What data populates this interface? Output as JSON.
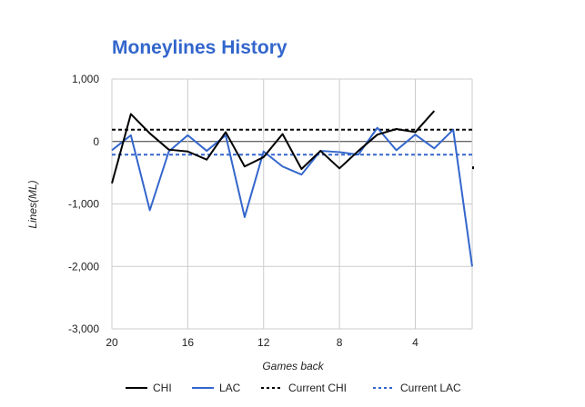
{
  "chart_data": {
    "type": "line",
    "title": "Moneylines History",
    "xlabel": "Games back",
    "ylabel": "Lines(ML)",
    "xlim": [
      20,
      1
    ],
    "ylim": [
      -3000,
      1000
    ],
    "x_ticks": [
      "20",
      "16",
      "12",
      "8",
      "4"
    ],
    "x_tick_values": [
      20,
      16,
      12,
      8,
      4
    ],
    "y_ticks": [
      "1,000",
      "0",
      "-1,000",
      "-2,000",
      "-3,000"
    ],
    "y_tick_values": [
      1000,
      0,
      -1000,
      -2000,
      -3000
    ],
    "grid": true,
    "legend_position": "bottom",
    "series": [
      {
        "name": "CHI",
        "style": "solid",
        "color": "#000000",
        "x": [
          20,
          19,
          18,
          17,
          16,
          15,
          14,
          13,
          12,
          11,
          10,
          9,
          8,
          7,
          6,
          5,
          4,
          3
        ],
        "values": [
          -670,
          440,
          130,
          -130,
          -160,
          -290,
          150,
          -400,
          -250,
          120,
          -440,
          -150,
          -430,
          -150,
          110,
          200,
          150,
          490
        ]
      },
      {
        "name": "LAC",
        "style": "solid",
        "color": "#3366cc",
        "x": [
          20,
          19,
          18,
          17,
          16,
          15,
          14,
          13,
          12,
          11,
          10,
          9,
          8,
          7,
          6,
          5,
          4,
          3,
          2,
          1
        ],
        "values": [
          -140,
          100,
          -1100,
          -160,
          100,
          -150,
          100,
          -1210,
          -160,
          -400,
          -530,
          -150,
          -170,
          -210,
          220,
          -140,
          110,
          -110,
          190,
          -2000
        ]
      },
      {
        "name": "Current CHI",
        "style": "dashed",
        "color": "#000000",
        "values": [
          190
        ]
      },
      {
        "name": "Current LAC",
        "style": "dashed",
        "color": "#3366cc",
        "values": [
          -210
        ]
      }
    ],
    "annotations": [
      {
        "type": "point",
        "series_name": "CHI",
        "x": 1,
        "y": -420,
        "color": "#000000"
      }
    ]
  },
  "colors": {
    "title": "#3366cc",
    "grid": "#cccccc",
    "zero_line": "#333333"
  }
}
